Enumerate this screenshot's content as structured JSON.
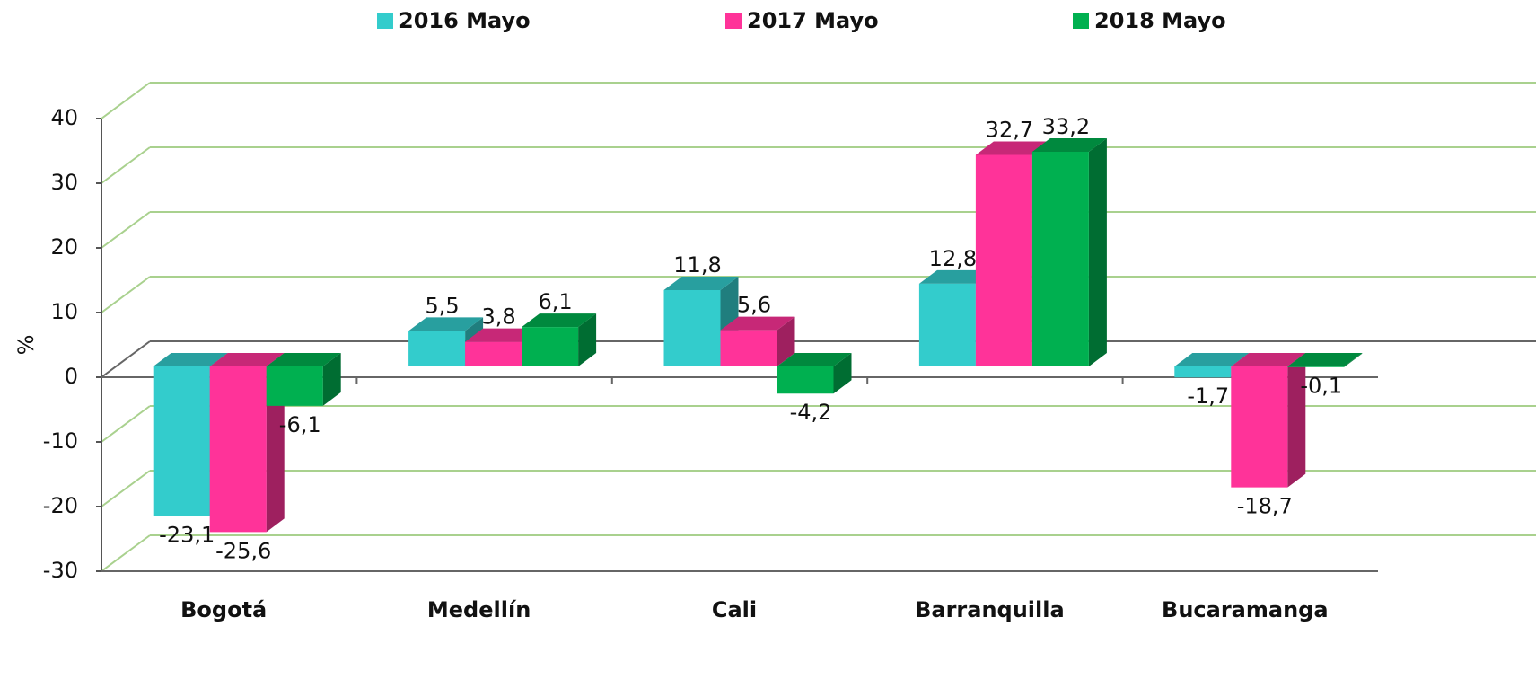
{
  "chart_data": {
    "type": "bar3d",
    "categories": [
      "Bogotá",
      "Medellín",
      "Cali",
      "Barranquilla",
      "Bucaramanga"
    ],
    "series": [
      {
        "name": "2016 Mayo",
        "color": "#33CCCC",
        "values": [
          -23.1,
          5.5,
          11.8,
          12.8,
          -1.7
        ],
        "value_labels": [
          "-23,1",
          "5,5",
          "11,8",
          "12,8",
          "-1,7"
        ]
      },
      {
        "name": "2017 Mayo",
        "color": "#FF3399",
        "values": [
          -25.6,
          3.8,
          5.6,
          32.7,
          -18.7
        ],
        "value_labels": [
          "-25,6",
          "3,8",
          "5,6",
          "32,7",
          "-18,7"
        ]
      },
      {
        "name": "2018 Mayo",
        "color": "#00B050",
        "values": [
          -6.1,
          6.1,
          -4.2,
          33.2,
          -0.1
        ],
        "value_labels": [
          "-6,1",
          "6,1",
          "-4,2",
          "33,2",
          "-0,1"
        ]
      }
    ],
    "y_label": "%",
    "ylim": [
      -30,
      40
    ],
    "yticks": [
      -30,
      -20,
      -10,
      0,
      10,
      20,
      30,
      40
    ],
    "grid": true
  }
}
